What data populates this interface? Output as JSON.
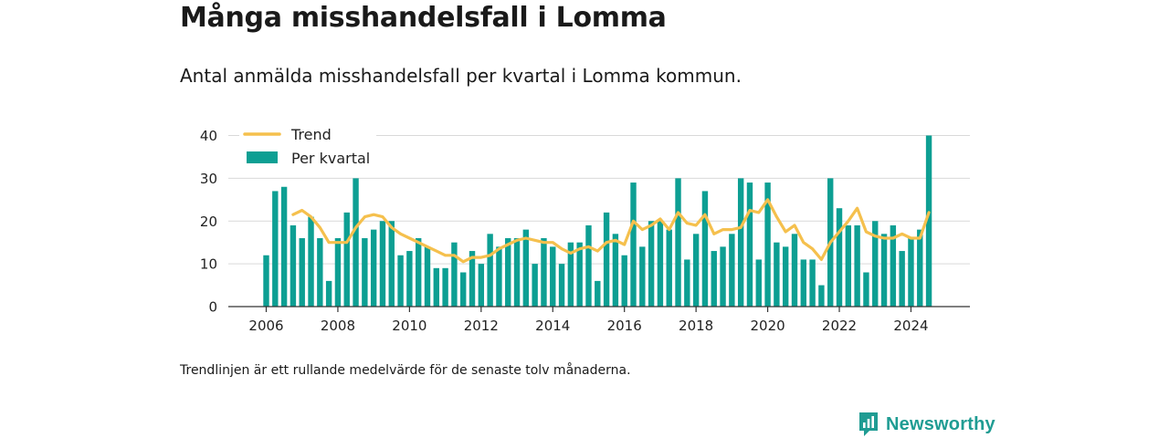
{
  "title": "Många misshandelsfall i Lomma",
  "subtitle": "Antal anmälda misshandelsfall per kvartal i Lomma kommun.",
  "footnote": "Trendlinjen är ett rullande medelvärde för de senaste tolv månaderna.",
  "brand": "Newsworthy",
  "colors": {
    "bar": "#0d9f93",
    "trend": "#f5c04d",
    "grid": "#d9d9d9",
    "axis": "#333333",
    "brand": "#1f9c93"
  },
  "chart_data": {
    "type": "bar",
    "title": "Många misshandelsfall i Lomma",
    "xlabel": "",
    "ylabel": "",
    "ylim": [
      0,
      40
    ],
    "yticks": [
      0,
      10,
      20,
      30,
      40
    ],
    "xticks": [
      "2006",
      "2008",
      "2010",
      "2012",
      "2014",
      "2016",
      "2018",
      "2020",
      "2022",
      "2024"
    ],
    "grid": true,
    "legend_position": "top-left",
    "x_start": "2006 Q1",
    "categories": [
      "2006 Q1",
      "2006 Q2",
      "2006 Q3",
      "2006 Q4",
      "2007 Q1",
      "2007 Q2",
      "2007 Q3",
      "2007 Q4",
      "2008 Q1",
      "2008 Q2",
      "2008 Q3",
      "2008 Q4",
      "2009 Q1",
      "2009 Q2",
      "2009 Q3",
      "2009 Q4",
      "2010 Q1",
      "2010 Q2",
      "2010 Q3",
      "2010 Q4",
      "2011 Q1",
      "2011 Q2",
      "2011 Q3",
      "2011 Q4",
      "2012 Q1",
      "2012 Q2",
      "2012 Q3",
      "2012 Q4",
      "2013 Q1",
      "2013 Q2",
      "2013 Q3",
      "2013 Q4",
      "2014 Q1",
      "2014 Q2",
      "2014 Q3",
      "2014 Q4",
      "2015 Q1",
      "2015 Q2",
      "2015 Q3",
      "2015 Q4",
      "2016 Q1",
      "2016 Q2",
      "2016 Q3",
      "2016 Q4",
      "2017 Q1",
      "2017 Q2",
      "2017 Q3",
      "2017 Q4",
      "2018 Q1",
      "2018 Q2",
      "2018 Q3",
      "2018 Q4",
      "2019 Q1",
      "2019 Q2",
      "2019 Q3",
      "2019 Q4",
      "2020 Q1",
      "2020 Q2",
      "2020 Q3",
      "2020 Q4",
      "2021 Q1",
      "2021 Q2",
      "2021 Q3",
      "2021 Q4",
      "2022 Q1",
      "2022 Q2",
      "2022 Q3",
      "2022 Q4",
      "2023 Q1",
      "2023 Q2",
      "2023 Q3",
      "2023 Q4",
      "2024 Q1",
      "2024 Q2",
      "2024 Q3"
    ],
    "series": [
      {
        "name": "Per kvartal",
        "type": "bar",
        "values": [
          12,
          27,
          28,
          19,
          16,
          21,
          16,
          6,
          16,
          22,
          30,
          16,
          18,
          20,
          20,
          12,
          13,
          16,
          14,
          9,
          9,
          15,
          8,
          13,
          10,
          17,
          14,
          16,
          16,
          18,
          10,
          16,
          14,
          10,
          15,
          15,
          19,
          6,
          22,
          17,
          12,
          29,
          14,
          20,
          20,
          18,
          30,
          11,
          17,
          27,
          13,
          14,
          17,
          30,
          29,
          11,
          29,
          15,
          14,
          17,
          11,
          11,
          5,
          30,
          23,
          19,
          19,
          8,
          20,
          17,
          19,
          13,
          16,
          18,
          40
        ]
      },
      {
        "name": "Trend",
        "type": "line",
        "values": [
          null,
          null,
          null,
          21.5,
          22.5,
          21,
          18.5,
          15,
          15,
          15,
          18.5,
          21,
          21.5,
          21,
          18.5,
          17,
          16,
          15,
          14,
          13,
          12,
          12,
          10.5,
          11.5,
          11.5,
          12,
          13.5,
          14.5,
          15.5,
          16,
          15.5,
          15,
          15,
          13.5,
          12.5,
          13.5,
          14,
          13,
          15,
          15.5,
          14.5,
          20,
          18,
          19,
          20.5,
          18,
          22,
          19.5,
          19,
          21.5,
          17,
          18,
          18,
          18.5,
          22.5,
          22,
          25,
          21,
          17.5,
          19,
          15,
          13.5,
          11,
          15,
          17.5,
          20,
          23,
          17.5,
          16.5,
          16,
          16,
          17,
          16,
          16,
          22
        ]
      }
    ]
  }
}
